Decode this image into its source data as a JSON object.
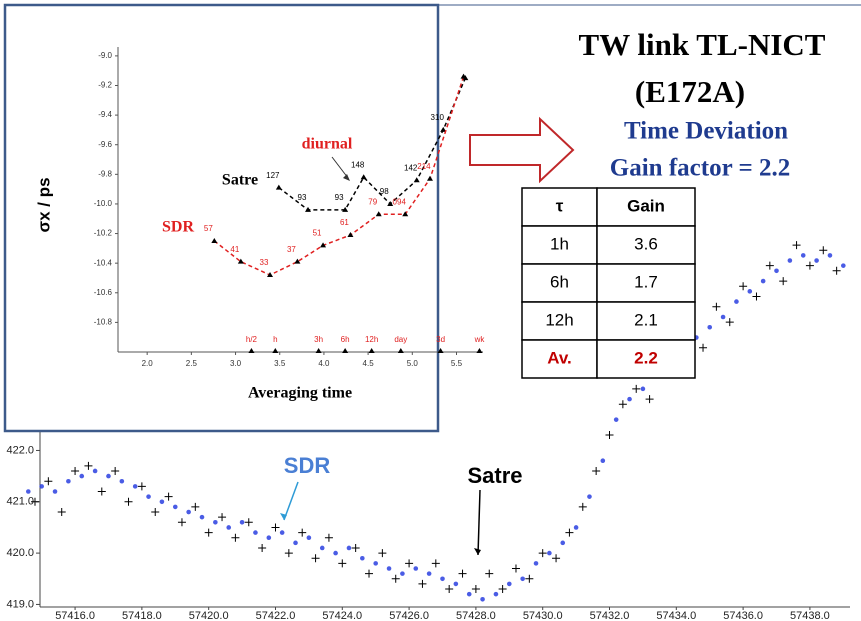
{
  "header": {
    "title": [
      "TW link TL-NICT",
      "(E172A)"
    ],
    "subtitle": [
      "Time Deviation",
      "Gain factor = 2.2"
    ]
  },
  "table": {
    "columns": [
      "τ",
      "Gain"
    ],
    "rows": [
      [
        "1h",
        "3.6"
      ],
      [
        "6h",
        "1.7"
      ],
      [
        "12h",
        "2.1"
      ],
      [
        "Av.",
        "2.2"
      ]
    ]
  },
  "chart_data": [
    {
      "type": "line",
      "xlabel": "Averaging time",
      "ylabel": "σx / ps",
      "annotation": "diurnal",
      "xlim": [
        1.67,
        5.8
      ],
      "ylim": [
        -11.0,
        -8.94
      ],
      "xticks": [
        {
          "value": 2,
          "label": "2.0"
        },
        2.5,
        {
          "value": 3,
          "label": "3.0"
        },
        3.5,
        {
          "value": 4,
          "label": "4.0"
        },
        4.5,
        {
          "value": 5,
          "label": "5.0"
        },
        5.5
      ],
      "yticks": [
        {
          "value": -9,
          "label": "-9.0"
        },
        -9.2,
        -9.4,
        -9.6,
        -9.8,
        {
          "value": -10,
          "label": "-10.0"
        },
        -10.2,
        -10.4,
        -10.6,
        -10.8
      ],
      "xmarkers": [
        {
          "value": 3.18,
          "label": "h/2"
        },
        {
          "value": 3.45,
          "label": "h"
        },
        {
          "value": 3.94,
          "label": "3h"
        },
        {
          "value": 4.24,
          "label": "6h"
        },
        {
          "value": 4.54,
          "label": "12h"
        },
        {
          "value": 4.87,
          "label": "day"
        },
        {
          "value": 5.32,
          "label": "3d"
        },
        {
          "value": 5.76,
          "label": "wk"
        }
      ],
      "series": [
        {
          "name": "Satre",
          "color": "#000000",
          "x": [
            3.49,
            3.82,
            4.24,
            4.45,
            4.75,
            5.05,
            5.35,
            5.6
          ],
          "values": [
            -9.89,
            -10.04,
            -10.04,
            -9.82,
            -10.0,
            -9.84,
            -9.5,
            -9.15
          ],
          "point_labels": [
            "127",
            "93",
            "93",
            "148",
            "98",
            "142",
            "310",
            null
          ]
        },
        {
          "name": "SDR",
          "color": "#e02020",
          "x": [
            2.76,
            3.06,
            3.39,
            3.7,
            3.99,
            4.3,
            4.62,
            4.92,
            5.2,
            5.58
          ],
          "values": [
            -10.25,
            -10.39,
            -10.48,
            -10.39,
            -10.28,
            -10.21,
            -10.07,
            -10.07,
            -9.83,
            -9.14
          ],
          "point_labels": [
            "57",
            "41",
            "33",
            "37",
            "51",
            "61",
            "79",
            "094",
            "214",
            null
          ]
        }
      ]
    },
    {
      "type": "scatter",
      "xlim": [
        57414.95,
        57439.2
      ],
      "ylim": [
        418.95,
        426.1
      ],
      "xticks": [
        {
          "value": 57416,
          "label": "57416.0"
        },
        {
          "value": 57418,
          "label": "57418.0"
        },
        {
          "value": 57420,
          "label": "57420.0"
        },
        {
          "value": 57422,
          "label": "57422.0"
        },
        {
          "value": 57424,
          "label": "57424.0"
        },
        {
          "value": 57426,
          "label": "57426.0"
        },
        {
          "value": 57428,
          "label": "57428.0"
        },
        {
          "value": 57430,
          "label": "57430.0"
        },
        {
          "value": 57432,
          "label": "57432.0"
        },
        {
          "value": 57434,
          "label": "57434.0"
        },
        {
          "value": 57436,
          "label": "57436.0"
        },
        {
          "value": 57438,
          "label": "57438.0"
        }
      ],
      "yticks": [
        {
          "value": 419,
          "label": "419.0"
        },
        {
          "value": 420,
          "label": "420.0"
        },
        {
          "value": 421,
          "label": "421.0"
        },
        {
          "value": 422,
          "label": "422.0"
        }
      ],
      "series": [
        {
          "name": "Satre",
          "color": "#000000",
          "marker": "plus",
          "x": [
            57414.8,
            57415.2,
            57415.6,
            57416.0,
            57416.4,
            57416.8,
            57417.2,
            57417.6,
            57418.0,
            57418.4,
            57418.8,
            57419.2,
            57419.6,
            57420.0,
            57420.4,
            57420.8,
            57421.2,
            57421.6,
            57422.0,
            57422.4,
            57422.8,
            57423.2,
            57423.6,
            57424.0,
            57424.4,
            57424.8,
            57425.2,
            57425.6,
            57426.0,
            57426.4,
            57426.8,
            57427.2,
            57427.6,
            57428.0,
            57428.4,
            57428.8,
            57429.2,
            57429.6,
            57430.0,
            57430.4,
            57430.8,
            57431.2,
            57431.6,
            57432.0,
            57432.4,
            57432.8,
            57433.2,
            57433.6,
            57434.0,
            57434.4,
            57434.8,
            57435.2,
            57435.6,
            57436.0,
            57436.4,
            57436.8,
            57437.2,
            57437.6,
            57438.0,
            57438.4,
            57438.8
          ],
          "values": [
            421.0,
            421.4,
            420.8,
            421.6,
            421.7,
            421.2,
            421.6,
            421.0,
            421.3,
            420.8,
            421.1,
            420.6,
            420.9,
            420.4,
            420.7,
            420.3,
            420.6,
            420.1,
            420.5,
            420.0,
            420.4,
            419.9,
            420.3,
            419.8,
            420.1,
            419.6,
            420.0,
            419.5,
            419.8,
            419.4,
            419.8,
            419.3,
            419.6,
            419.3,
            419.6,
            419.3,
            419.7,
            419.5,
            420.0,
            419.9,
            420.4,
            420.9,
            421.6,
            422.3,
            422.9,
            423.2,
            423.0,
            423.8,
            423.6,
            424.3,
            424.0,
            424.8,
            424.5,
            425.2,
            425.0,
            425.6,
            425.3,
            426.0,
            425.6,
            425.9,
            425.5
          ]
        },
        {
          "name": "SDR",
          "color": "#2a3fe0",
          "marker": "circle",
          "x": [
            57414.6,
            57415.0,
            57415.4,
            57415.8,
            57416.2,
            57416.6,
            57417.0,
            57417.4,
            57417.8,
            57418.2,
            57418.6,
            57419.0,
            57419.4,
            57419.8,
            57420.2,
            57420.6,
            57421.0,
            57421.4,
            57421.8,
            57422.2,
            57422.6,
            57423.0,
            57423.4,
            57423.8,
            57424.2,
            57424.6,
            57425.0,
            57425.4,
            57425.8,
            57426.2,
            57426.6,
            57427.0,
            57427.4,
            57427.8,
            57428.2,
            57428.6,
            57429.0,
            57429.4,
            57429.8,
            57430.2,
            57430.6,
            57431.0,
            57431.4,
            57431.8,
            57432.2,
            57432.6,
            57433.0,
            57433.4,
            57433.8,
            57434.2,
            57434.6,
            57435.0,
            57435.4,
            57435.8,
            57436.2,
            57436.6,
            57437.0,
            57437.4,
            57437.8,
            57438.2,
            57438.6,
            57439.0
          ],
          "values": [
            421.2,
            421.3,
            421.2,
            421.4,
            421.5,
            421.6,
            421.5,
            421.4,
            421.3,
            421.1,
            421.0,
            420.9,
            420.8,
            420.7,
            420.6,
            420.5,
            420.6,
            420.4,
            420.3,
            420.4,
            420.2,
            420.3,
            420.1,
            420.0,
            420.1,
            419.9,
            419.8,
            419.7,
            419.6,
            419.7,
            419.6,
            419.5,
            419.4,
            419.2,
            419.1,
            419.2,
            419.4,
            419.5,
            419.8,
            420.0,
            420.2,
            420.5,
            421.1,
            421.8,
            422.6,
            423.0,
            423.2,
            423.5,
            423.7,
            423.9,
            424.2,
            424.4,
            424.6,
            424.9,
            425.1,
            425.3,
            425.5,
            425.7,
            425.8,
            425.7,
            425.8,
            425.6
          ]
        }
      ]
    }
  ]
}
